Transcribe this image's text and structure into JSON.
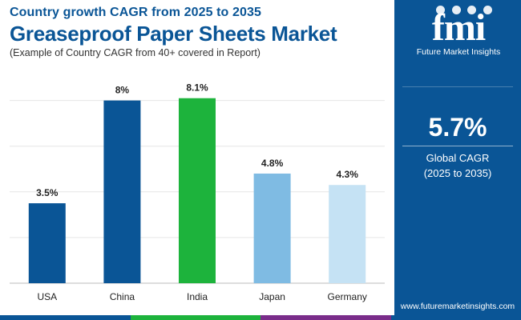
{
  "header": {
    "subtitle": "Country growth CAGR from 2025 to 2035",
    "title": "Greaseproof Paper Sheets Market",
    "note": "(Example of Country CAGR from 40+ covered in Report)"
  },
  "sidebar": {
    "logo_text": "fmi",
    "logo_sub": "Future Market Insights",
    "cagr_value": "5.7%",
    "cagr_label": "Global CAGR",
    "cagr_period": "(2025 to 2035)",
    "website": "www.futuremarketinsights.com",
    "bg_color": "#0a5596"
  },
  "chart_data": {
    "type": "bar",
    "categories": [
      "USA",
      "China",
      "India",
      "Japan",
      "Germany"
    ],
    "values": [
      3.5,
      8,
      8.1,
      4.8,
      4.3
    ],
    "value_labels": [
      "3.5%",
      "8%",
      "8.1%",
      "4.8%",
      "4.3%"
    ],
    "colors": [
      "#0a5596",
      "#0a5596",
      "#1db33c",
      "#7fbbe3",
      "#c5e2f4"
    ],
    "ylim": [
      0,
      10
    ],
    "grid": true,
    "gridlines": [
      0,
      2,
      4,
      6,
      8
    ]
  },
  "bottom_band_colors": [
    "#0a5596",
    "#1db33c",
    "#7a2d8a",
    "#0a5596"
  ]
}
